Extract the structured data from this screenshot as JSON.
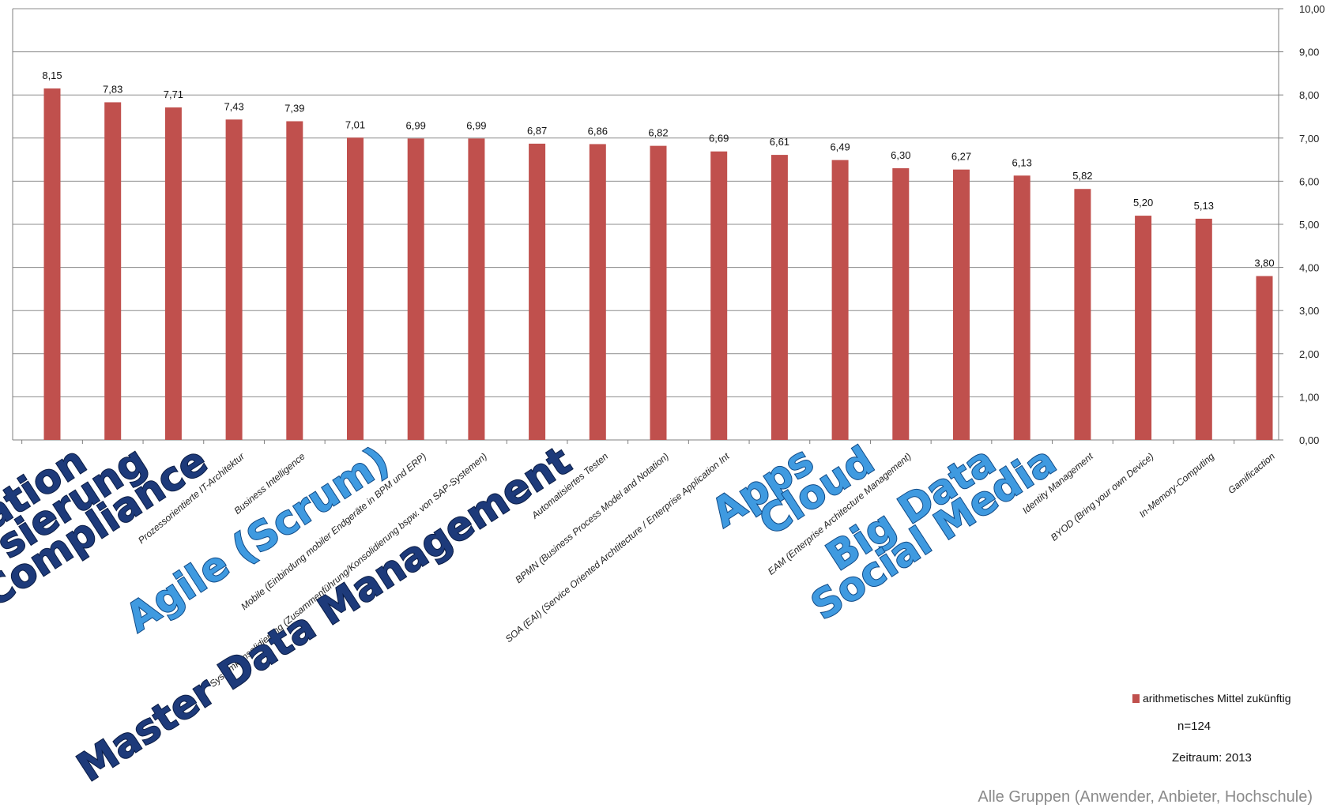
{
  "chart_data": {
    "type": "bar",
    "categories": [
      "Automation",
      "Standardisierung",
      "Compliance",
      "Prozessorientierte IT-Architektur",
      "Business Intelligence",
      "Agile (Scrum)",
      "Mobile (Einbindung mobiler Endgeräte in BPM und ERP)",
      "Systemkonsolidierung (Zusammenführung/Konsolidierung bspw. von SAP-Systemen)",
      "Master Data Management",
      "Automatisiertes Testen",
      "BPMN (Business Process Model and Notation)",
      "SOA (EAI) (Service Oriented Archtitecture / Enterprise Application Integration)",
      "Apps",
      "Cloud",
      "EAM (Enterprise Architecture Management)",
      "Big Data",
      "Social Media",
      "Identity Management",
      "BYOD (Bring your own Device)",
      "In-Memory-Computing",
      "Gamificaction"
    ],
    "values": [
      8.15,
      7.83,
      7.71,
      7.43,
      7.39,
      7.01,
      6.99,
      6.99,
      6.87,
      6.86,
      6.82,
      6.69,
      6.61,
      6.49,
      6.3,
      6.27,
      6.13,
      5.82,
      5.2,
      5.13,
      3.8
    ],
    "value_labels": [
      "8,15",
      "7,83",
      "7,71",
      "7,43",
      "7,39",
      "7,01",
      "6,99",
      "6,99",
      "6,87",
      "6,86",
      "6,82",
      "6,69",
      "6,61",
      "6,49",
      "6,30",
      "6,27",
      "6,13",
      "5,82",
      "5,20",
      "5,13",
      "3,80"
    ],
    "shown_labels": [
      "ation",
      "sierung",
      "Compliance",
      "Prozessorientierte IT-Architektur",
      "Business Intelligence",
      "Agile (Scrum)",
      "Mobile (Einbindung mobiler Endgeräte in BPM und ERP)",
      "Systemkonsolidierung (Zusammenführung/Konsolidierung bspw. von SAP-Systemen)",
      "Master Data Management",
      "Automatisiertes Testen",
      "BPMN (Business Process Model and Notation)",
      "SOA (EAI) (Service Oriented Archtitecture / Enterprise Application Int",
      "Apps",
      "Cloud",
      "EAM (Enterprise Architecture Management)",
      "Big Data",
      "Social Media",
      "Identity Management",
      "BYOD (Bring your own Device)",
      "In-Memory-Computing",
      "Gamificaction"
    ],
    "label_style": [
      "big-dark",
      "big-dark",
      "big-dark",
      "small",
      "small",
      "big-light",
      "small",
      "small",
      "big-dark",
      "small",
      "small",
      "small",
      "big-light",
      "big-light",
      "small",
      "big-light",
      "big-light",
      "small",
      "small",
      "small",
      "small"
    ],
    "y_ticks": [
      "0,00",
      "1,00",
      "2,00",
      "3,00",
      "4,00",
      "5,00",
      "6,00",
      "7,00",
      "8,00",
      "9,00",
      "10,00"
    ],
    "ylim": [
      0,
      10
    ],
    "y_axis_side": "right",
    "grid": true,
    "bar_color": "#c0504d",
    "legend": [
      "arithmetisches Mittel zukünftig"
    ],
    "legend_position": "bottom-right",
    "title": "",
    "xlabel": "",
    "ylabel": ""
  },
  "notes": {
    "n": "n=124",
    "period": "Zeitraum: 2013",
    "source": "Alle Gruppen (Anwender, Anbieter, Hochschule)"
  }
}
